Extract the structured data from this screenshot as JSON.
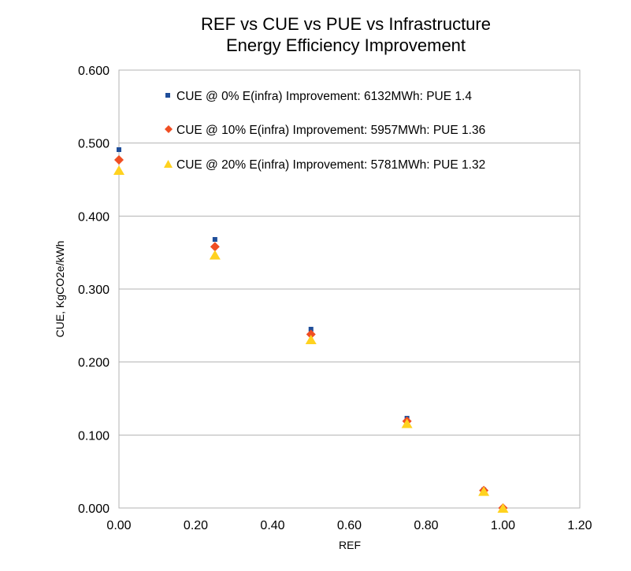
{
  "chart_data": {
    "type": "scatter",
    "title": [
      "REF vs CUE vs PUE vs Infrastructure",
      "Energy Efficiency Improvement"
    ],
    "xlabel": "REF",
    "ylabel": "CUE, KgCO2e/kWh",
    "xlim": [
      0,
      1.2
    ],
    "ylim": [
      0,
      0.6
    ],
    "x_ticks": [
      "0.00",
      "0.20",
      "0.40",
      "0.60",
      "0.80",
      "1.00",
      "1.20"
    ],
    "y_ticks": [
      "0.000",
      "0.100",
      "0.200",
      "0.300",
      "0.400",
      "0.500",
      "0.600"
    ],
    "gridlines": "horizontal",
    "legend_position": "top-right",
    "series": [
      {
        "name": "CUE @ 0% E(infra) Improvement: 6132MWh: PUE 1.4",
        "marker": "square",
        "color": "#1F4E9A",
        "x": [
          0,
          0.25,
          0.5,
          0.75,
          0.95,
          1.0
        ],
        "y": [
          0.491,
          0.368,
          0.245,
          0.123,
          0.025,
          0.0
        ]
      },
      {
        "name": "CUE @ 10% E(infra) Improvement: 5957MWh: PUE 1.36",
        "marker": "diamond",
        "color": "#F04E23",
        "x": [
          0,
          0.25,
          0.5,
          0.75,
          0.95,
          1.0
        ],
        "y": [
          0.477,
          0.358,
          0.238,
          0.119,
          0.024,
          0.0
        ]
      },
      {
        "name": "CUE @ 20% E(infra) Improvement: 5781MWh: PUE 1.32",
        "marker": "triangle",
        "color": "#FFD21F",
        "x": [
          0,
          0.25,
          0.5,
          0.75,
          0.95,
          1.0
        ],
        "y": [
          0.463,
          0.347,
          0.231,
          0.116,
          0.023,
          0.0
        ]
      }
    ]
  }
}
